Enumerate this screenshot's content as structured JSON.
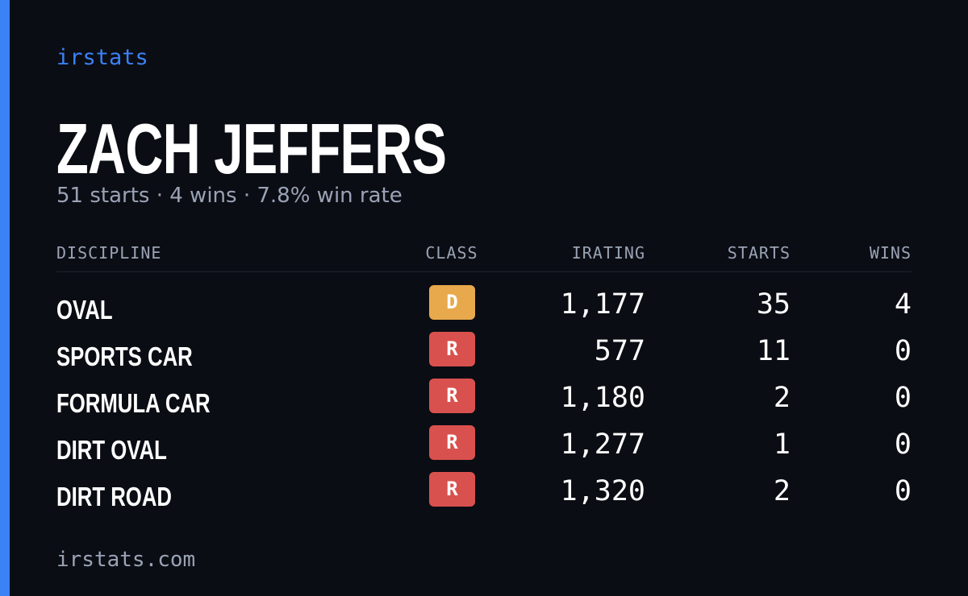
{
  "brand": "irstats",
  "driver": {
    "name": "ZACH JEFFERS",
    "summary": "51 starts · 4 wins · 7.8% win rate"
  },
  "table": {
    "headers": [
      "DISCIPLINE",
      "CLASS",
      "IRATING",
      "STARTS",
      "WINS"
    ],
    "rows": [
      {
        "discipline": "OVAL",
        "class": "D",
        "class_color": "#e8a94c",
        "irating": "1,177",
        "starts": "35",
        "wins": "4"
      },
      {
        "discipline": "SPORTS CAR",
        "class": "R",
        "class_color": "#d9514e",
        "irating": "577",
        "starts": "11",
        "wins": "0"
      },
      {
        "discipline": "FORMULA CAR",
        "class": "R",
        "class_color": "#d9514e",
        "irating": "1,180",
        "starts": "2",
        "wins": "0"
      },
      {
        "discipline": "DIRT OVAL",
        "class": "R",
        "class_color": "#d9514e",
        "irating": "1,277",
        "starts": "1",
        "wins": "0"
      },
      {
        "discipline": "DIRT ROAD",
        "class": "R",
        "class_color": "#d9514e",
        "irating": "1,320",
        "starts": "2",
        "wins": "0"
      }
    ]
  },
  "footer": "irstats.com"
}
